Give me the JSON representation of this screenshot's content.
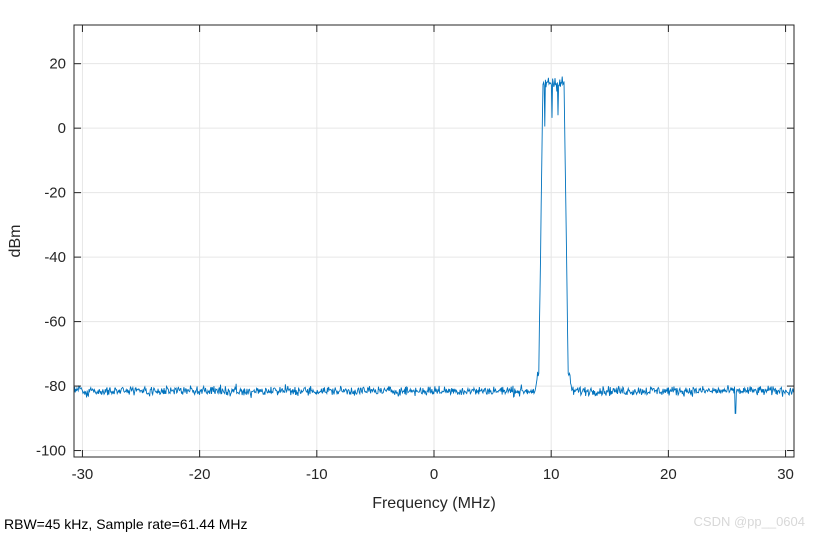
{
  "chart_data": {
    "type": "line",
    "title": "",
    "xlabel": "Frequency (MHz)",
    "ylabel": "dBm",
    "xlim": [
      -30.72,
      30.72
    ],
    "ylim": [
      -102,
      32
    ],
    "xticks": [
      -30,
      -20,
      -10,
      0,
      10,
      20,
      30
    ],
    "yticks": [
      -100,
      -80,
      -60,
      -40,
      -20,
      0,
      20
    ],
    "xtick_labels": [
      "-30",
      "-20",
      "-10",
      "0",
      "10",
      "20",
      "30"
    ],
    "ytick_labels": [
      "-100",
      "-80",
      "-60",
      "-40",
      "-20",
      "0",
      "20"
    ],
    "grid": true,
    "series": [
      {
        "name": "spectrum",
        "color": "#0072bd",
        "noise_floor_dbm": -81.5,
        "noise_spread_db": 2.5,
        "band_center_mhz": 10.2,
        "band_width_mhz": 1.8,
        "band_level_dbm": 14,
        "band_edge_rolloff_mhz": 0.35,
        "min_spike": {
          "x": 25.7,
          "y": -88.5
        },
        "points": 1200
      }
    ]
  },
  "footnote": "RBW=45 kHz, Sample rate=61.44 MHz",
  "watermark": "CSDN @pp__0604"
}
